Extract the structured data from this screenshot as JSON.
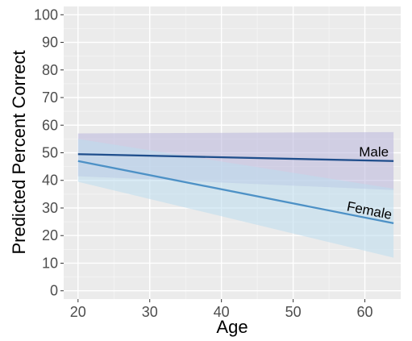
{
  "chart_data": {
    "type": "line",
    "xlabel": "Age",
    "ylabel": "Predicted Percent Correct",
    "xlim": [
      18,
      65
    ],
    "ylim": [
      -3,
      103
    ],
    "x_ticks": [
      20,
      30,
      40,
      50,
      60
    ],
    "y_ticks": [
      0,
      10,
      20,
      30,
      40,
      50,
      60,
      70,
      80,
      90,
      100
    ],
    "grid": true,
    "legend": "none",
    "series": [
      {
        "name": "Male",
        "color": "#1f4e8c",
        "band_color": "#b9b6dd",
        "x": [
          20,
          64
        ],
        "y": [
          49.5,
          47
        ],
        "ci_lower": [
          41.5,
          36.5
        ],
        "ci_upper": [
          57,
          57.5
        ]
      },
      {
        "name": "Female",
        "color": "#4d91c6",
        "band_color": "#bcdcee",
        "x": [
          20,
          64
        ],
        "y": [
          47,
          24.5
        ],
        "ci_lower": [
          39.5,
          12
        ],
        "ci_upper": [
          55,
          37
        ]
      }
    ]
  }
}
